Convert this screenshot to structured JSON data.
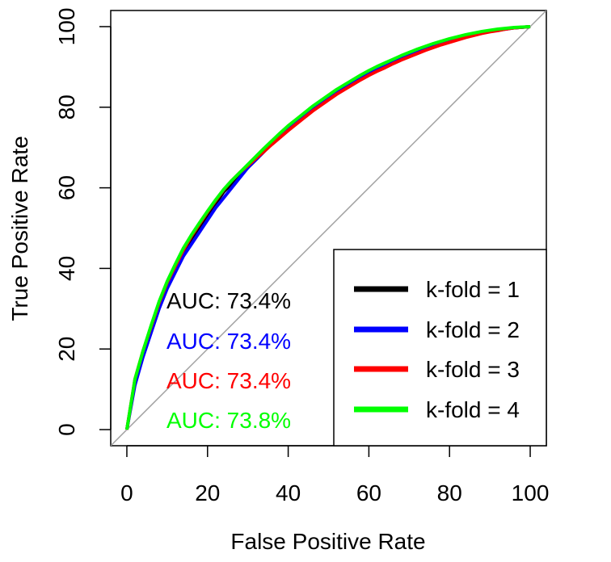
{
  "chart_data": {
    "type": "line",
    "title": "",
    "xlabel": "False Positive Rate",
    "ylabel": "True Positive Rate",
    "xlim": [
      -4,
      104
    ],
    "ylim": [
      -4,
      104
    ],
    "x_ticks": [
      0,
      20,
      40,
      60,
      80,
      100
    ],
    "y_ticks": [
      0,
      20,
      40,
      60,
      80,
      100
    ],
    "grid": false,
    "legend_position": "bottom-right",
    "diagonal_reference_color": "#a0a0a0",
    "series": [
      {
        "name": "k-fold = 1",
        "color": "#000000",
        "auc_label": "AUC: 73.4%",
        "x": [
          0,
          2,
          4,
          6,
          8,
          10,
          12,
          14,
          16,
          18,
          20,
          22,
          24,
          26,
          28,
          30,
          32,
          34,
          36,
          38,
          40,
          42,
          44,
          46,
          48,
          50,
          52,
          54,
          56,
          58,
          60,
          62,
          64,
          66,
          68,
          70,
          72,
          74,
          76,
          78,
          80,
          82,
          84,
          86,
          88,
          90,
          92,
          94,
          96,
          98,
          100
        ],
        "y": [
          0,
          12,
          19,
          25,
          31,
          36,
          40,
          44,
          47,
          50,
          53,
          56,
          59,
          61,
          63,
          65,
          67,
          69,
          71,
          73,
          75,
          76.6,
          78.2,
          79.8,
          81.2,
          82.6,
          84,
          85.2,
          86.4,
          87.6,
          88.7,
          89.7,
          90.6,
          91.5,
          92.4,
          93.2,
          94,
          94.7,
          95.4,
          96,
          96.6,
          97.2,
          97.7,
          98.1,
          98.5,
          98.9,
          99.2,
          99.5,
          99.7,
          99.85,
          100
        ]
      },
      {
        "name": "k-fold = 2",
        "color": "#0000ff",
        "auc_label": "AUC: 73.4%",
        "x": [
          0,
          2,
          4,
          6,
          8,
          10,
          12,
          14,
          16,
          18,
          20,
          22,
          24,
          26,
          28,
          30,
          32,
          34,
          36,
          38,
          40,
          42,
          44,
          46,
          48,
          50,
          52,
          54,
          56,
          58,
          60,
          62,
          64,
          66,
          68,
          70,
          72,
          74,
          76,
          78,
          80,
          82,
          84,
          86,
          88,
          90,
          92,
          94,
          96,
          98,
          100
        ],
        "y": [
          0,
          11,
          18,
          24,
          30,
          35,
          39,
          43,
          46,
          49,
          52,
          55,
          57.5,
          60,
          62.5,
          65,
          67,
          69,
          71,
          73,
          75,
          76.6,
          78.2,
          79.8,
          81.2,
          82.6,
          84,
          85.2,
          86.4,
          87.5,
          88.6,
          89.6,
          90.5,
          91.4,
          92.3,
          93.1,
          93.9,
          94.6,
          95.3,
          95.9,
          96.5,
          97.1,
          97.6,
          98,
          98.4,
          98.8,
          99.1,
          99.4,
          99.7,
          99.85,
          100
        ]
      },
      {
        "name": "k-fold = 3",
        "color": "#ff0000",
        "auc_label": "AUC: 73.4%",
        "x": [
          0,
          2,
          4,
          6,
          8,
          10,
          12,
          14,
          16,
          18,
          20,
          22,
          24,
          26,
          28,
          30,
          32,
          34,
          36,
          38,
          40,
          42,
          44,
          46,
          48,
          50,
          52,
          54,
          56,
          58,
          60,
          62,
          64,
          66,
          68,
          70,
          72,
          74,
          76,
          78,
          80,
          82,
          84,
          86,
          88,
          90,
          92,
          94,
          96,
          98,
          100
        ],
        "y": [
          0,
          12.5,
          19.5,
          25.5,
          31.5,
          36.5,
          40.5,
          44.5,
          48,
          51,
          54,
          56.8,
          59.5,
          61.8,
          63.8,
          65.5,
          67.3,
          69,
          70.8,
          72.5,
          74.2,
          75.8,
          77.4,
          79,
          80.4,
          81.8,
          83.2,
          84.4,
          85.6,
          86.8,
          87.9,
          88.9,
          89.8,
          90.8,
          91.7,
          92.5,
          93.3,
          94.1,
          94.8,
          95.5,
          96.1,
          96.7,
          97.3,
          97.8,
          98.3,
          98.7,
          99,
          99.4,
          99.7,
          99.85,
          100
        ]
      },
      {
        "name": "k-fold = 4",
        "color": "#00ff00",
        "auc_label": "AUC: 73.8%",
        "x": [
          0,
          2,
          4,
          6,
          8,
          10,
          12,
          14,
          16,
          18,
          20,
          22,
          24,
          26,
          28,
          30,
          32,
          34,
          36,
          38,
          40,
          42,
          44,
          46,
          48,
          50,
          52,
          54,
          56,
          58,
          60,
          62,
          64,
          66,
          68,
          70,
          72,
          74,
          76,
          78,
          80,
          82,
          84,
          86,
          88,
          90,
          92,
          94,
          96,
          98,
          100
        ],
        "y": [
          0,
          12.5,
          19.5,
          25.8,
          31.8,
          36.8,
          41,
          45,
          48.3,
          51.3,
          54.2,
          57,
          59.6,
          61.8,
          63.8,
          65.8,
          67.8,
          69.8,
          71.7,
          73.6,
          75.4,
          77,
          78.6,
          80.2,
          81.6,
          83,
          84.4,
          85.6,
          86.8,
          88,
          89.1,
          90.1,
          91,
          91.9,
          92.8,
          93.6,
          94.4,
          95.1,
          95.8,
          96.4,
          97,
          97.5,
          98,
          98.4,
          98.8,
          99.1,
          99.4,
          99.6,
          99.8,
          99.9,
          100
        ]
      }
    ]
  }
}
